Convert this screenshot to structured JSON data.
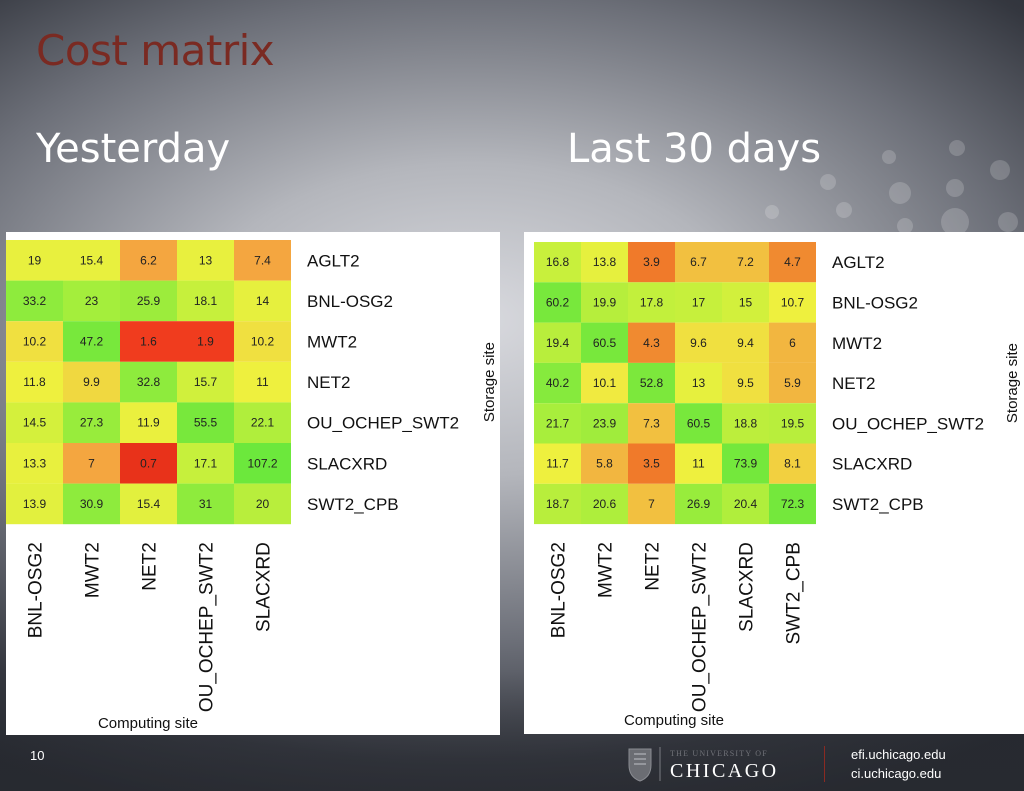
{
  "slide": {
    "title": "Cost matrix",
    "left_heading": "Yesterday",
    "right_heading": "Last 30 days",
    "page_number": "10",
    "logo_text": {
      "top": "THE UNIVERSITY OF",
      "main": "CHICAGO"
    },
    "urls": [
      "efi.uchicago.edu",
      "ci.uchicago.edu"
    ]
  },
  "chart_data": [
    {
      "type": "heatmap",
      "xlabel": "Computing site",
      "ylabel": "Storage site",
      "rows": [
        "AGLT2",
        "BNL-OSG2",
        "MWT2",
        "NET2",
        "OU_OCHEP_SWT2",
        "SLACXRD",
        "SWT2_CPB"
      ],
      "column_labels": [
        "BNL-OSG2",
        "MWT2",
        "NET2",
        "OU_OCHEP_SWT2",
        "SLACXRD"
      ],
      "values": [
        [
          19,
          15.4,
          6.2,
          13,
          7.4
        ],
        [
          33.2,
          23,
          25.9,
          18.1,
          14
        ],
        [
          10.2,
          47.2,
          1.6,
          1.9,
          10.2
        ],
        [
          11.8,
          9.9,
          32.8,
          15.7,
          11
        ],
        [
          14.5,
          27.3,
          11.9,
          55.5,
          22.1
        ],
        [
          13.3,
          7,
          0.7,
          17.1,
          107.2
        ],
        [
          13.9,
          30.9,
          15.4,
          31,
          20
        ]
      ],
      "colors": [
        [
          "#e8f03e",
          "#e8f03e",
          "#f4a640",
          "#e8f03e",
          "#f4a640"
        ],
        [
          "#8eeb3d",
          "#a4ee3c",
          "#9cec3c",
          "#c6f03c",
          "#e6f03e"
        ],
        [
          "#f0e040",
          "#78e83c",
          "#f03c1e",
          "#f03c1e",
          "#f0e040"
        ],
        [
          "#eef03e",
          "#f0d840",
          "#8eeb3d",
          "#d0f03c",
          "#eef03e"
        ],
        [
          "#d4f03c",
          "#98ec3c",
          "#eaf03e",
          "#78e83c",
          "#b0ee3c"
        ],
        [
          "#e8f03e",
          "#f4a640",
          "#e8321a",
          "#c6f03c",
          "#6ce83c"
        ],
        [
          "#e2f03e",
          "#8eeb3d",
          "#e2f03e",
          "#8eeb3d",
          "#b8ee3c"
        ]
      ]
    },
    {
      "type": "heatmap",
      "xlabel": "Computing site",
      "ylabel": "Storage site",
      "rows": [
        "AGLT2",
        "BNL-OSG2",
        "MWT2",
        "NET2",
        "OU_OCHEP_SWT2",
        "SLACXRD",
        "SWT2_CPB"
      ],
      "column_labels": [
        "BNL-OSG2",
        "MWT2",
        "NET2",
        "OU_OCHEP_SWT2",
        "SLACXRD",
        "SWT2_CPB"
      ],
      "values": [
        [
          16.8,
          13.8,
          3.9,
          6.7,
          7.2,
          4.7
        ],
        [
          60.2,
          19.9,
          17.8,
          17,
          15,
          10.7
        ],
        [
          19.4,
          60.5,
          4.3,
          9.6,
          9.4,
          6
        ],
        [
          40.2,
          10.1,
          52.8,
          13,
          9.5,
          5.9
        ],
        [
          21.7,
          23.9,
          7.3,
          60.5,
          18.8,
          19.5
        ],
        [
          11.7,
          5.8,
          3.5,
          11,
          73.9,
          8.1
        ],
        [
          18.7,
          20.6,
          7,
          26.9,
          20.4,
          72.3
        ]
      ],
      "colors": [
        [
          "#c8f03c",
          "#e6f03e",
          "#f07a2a",
          "#f2c040",
          "#f2c040",
          "#f08a30"
        ],
        [
          "#78e83c",
          "#b6ee3c",
          "#c2f03c",
          "#c6f03c",
          "#d2f03c",
          "#eef03e"
        ],
        [
          "#b8ee3c",
          "#78e83c",
          "#f08a30",
          "#f0e040",
          "#f0e040",
          "#f2b640"
        ],
        [
          "#86ea3d",
          "#f0ea40",
          "#7ce83c",
          "#e6f03e",
          "#f0e040",
          "#f2b640"
        ],
        [
          "#a8ee3c",
          "#a0ec3c",
          "#f2c040",
          "#78e83c",
          "#bcee3c",
          "#b8ee3c"
        ],
        [
          "#eef03e",
          "#f2b640",
          "#f07a2a",
          "#eef03e",
          "#74e83c",
          "#f2d040"
        ],
        [
          "#b8ee3c",
          "#aeee3c",
          "#f2c040",
          "#98ec3c",
          "#b0ee3c",
          "#74e83c"
        ]
      ]
    }
  ]
}
